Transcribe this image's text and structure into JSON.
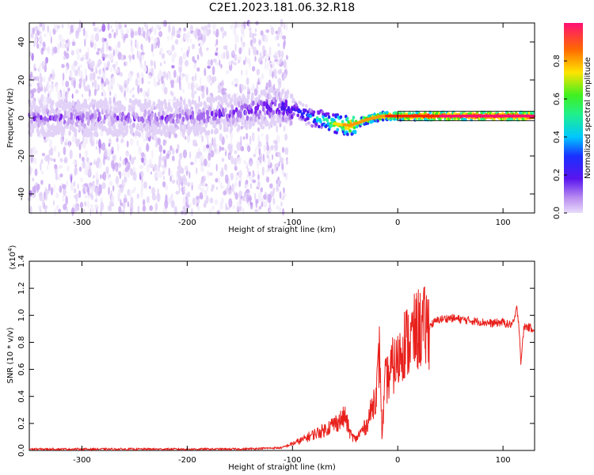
{
  "title": "C2E1.2023.181.06.32.R18",
  "colors": {
    "snr_line": "#e8201c",
    "spectrogram_ramp": [
      "#f2ecfb",
      "#e2d2f7",
      "#cba9f2",
      "#a56bee",
      "#7a1fee",
      "#4a12f0",
      "#2626ff",
      "#00c8ff",
      "#2ff0a0",
      "#3cf020",
      "#ffe000",
      "#ff9a00",
      "#ff2a00",
      "#ff1070"
    ]
  },
  "chart_data": [
    {
      "type": "heatmap",
      "xlabel": "Height of straight line (km)",
      "ylabel": "Frequency (Hz)",
      "xlim": [
        -350,
        130
      ],
      "ylim": [
        -50,
        50
      ],
      "x_ticks": [
        -300,
        -200,
        -100,
        0,
        100
      ],
      "x_tick_labels": [
        "-300",
        "-200",
        "-100",
        "0",
        "100"
      ],
      "y_ticks": [
        -40,
        -20,
        0,
        20,
        40
      ],
      "y_tick_labels": [
        "-40",
        "-20",
        "0",
        "20",
        "40"
      ],
      "colorbar": {
        "label": "Normalized spectral amplitude",
        "range": [
          0,
          1
        ],
        "ticks": [
          0.0,
          0.2,
          0.4,
          0.6,
          0.8
        ],
        "tick_labels": [
          "0.0",
          "0.2",
          "0.4",
          "0.6",
          "0.8"
        ]
      },
      "centerline": {
        "x": [
          -350,
          -300,
          -250,
          -200,
          -150,
          -120,
          -100,
          -80,
          -60,
          -45,
          -30,
          -15,
          0,
          25,
          50,
          75,
          100,
          130
        ],
        "y": [
          0,
          0,
          0,
          0,
          3,
          6,
          5,
          0,
          -3,
          -4,
          -1,
          1,
          1,
          1,
          1,
          1,
          1,
          1
        ],
        "amplitude": [
          0.25,
          0.25,
          0.25,
          0.25,
          0.3,
          0.35,
          0.4,
          0.55,
          0.75,
          0.85,
          0.85,
          0.88,
          0.9,
          0.95,
          0.97,
          0.98,
          0.98,
          0.98
        ]
      },
      "scatter_region": {
        "x": [
          -350,
          -105
        ],
        "y": [
          -50,
          50
        ],
        "amplitude": [
          0.02,
          0.2
        ]
      }
    },
    {
      "type": "line",
      "xlabel": "Height of straight line (km)",
      "ylabel": "SNR (10 * v/v)",
      "multiplier_label": "(x10",
      "multiplier_exponent": "4",
      "multiplier_close": ")",
      "xlim": [
        -350,
        130
      ],
      "ylim": [
        0,
        1.4
      ],
      "x_ticks": [
        -300,
        -200,
        -100,
        0,
        100
      ],
      "x_tick_labels": [
        "-300",
        "-200",
        "-100",
        "0",
        "100"
      ],
      "y_ticks": [
        0.0,
        0.2,
        0.4,
        0.6,
        0.8,
        1.0,
        1.2,
        1.4
      ],
      "y_tick_labels": [
        "0.0",
        "0.2",
        "0.4",
        "0.6",
        "0.8",
        "1.0",
        "1.2",
        "1.4"
      ],
      "series": [
        {
          "x": [
            -350,
            -300,
            -250,
            -200,
            -150,
            -110,
            -100,
            -90,
            -80,
            -70,
            -60,
            -55,
            -50,
            -45,
            -40,
            -35,
            -30,
            -25,
            -20,
            -17,
            -15,
            -12,
            -8,
            -5,
            0,
            5,
            10,
            15,
            20,
            25,
            30,
            35,
            40,
            50,
            60,
            70,
            80,
            90,
            100,
            105,
            110,
            113,
            115,
            117,
            120,
            125,
            130
          ],
          "y": [
            0.01,
            0.01,
            0.01,
            0.01,
            0.01,
            0.02,
            0.05,
            0.08,
            0.12,
            0.15,
            0.2,
            0.22,
            0.25,
            0.12,
            0.08,
            0.14,
            0.18,
            0.3,
            0.45,
            0.75,
            0.1,
            0.5,
            0.55,
            0.62,
            0.65,
            0.8,
            0.8,
            0.85,
            0.9,
            0.9,
            0.92,
            0.95,
            0.97,
            0.98,
            0.97,
            0.96,
            0.95,
            0.94,
            0.95,
            0.93,
            0.94,
            1.05,
            0.95,
            0.65,
            0.92,
            0.91,
            0.9
          ]
        }
      ]
    }
  ]
}
